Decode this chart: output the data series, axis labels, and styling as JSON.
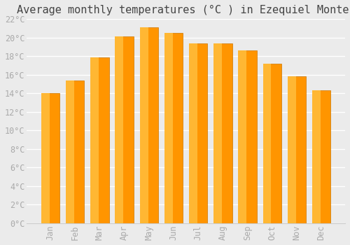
{
  "title": "Average monthly temperatures (°C ) in Ezequiel Montes",
  "months": [
    "Jan",
    "Feb",
    "Mar",
    "Apr",
    "May",
    "Jun",
    "Jul",
    "Aug",
    "Sep",
    "Oct",
    "Nov",
    "Dec"
  ],
  "values": [
    14.0,
    15.4,
    17.9,
    20.1,
    21.1,
    20.5,
    19.4,
    19.4,
    18.6,
    17.2,
    15.8,
    14.3
  ],
  "bar_color_top": "#FFB733",
  "bar_color_bottom": "#FF9500",
  "bar_edge_color": "#CC7700",
  "ylim": [
    0,
    22
  ],
  "yticks": [
    0,
    2,
    4,
    6,
    8,
    10,
    12,
    14,
    16,
    18,
    20,
    22
  ],
  "background_color": "#ebebeb",
  "grid_color": "#ffffff",
  "title_fontsize": 11,
  "tick_fontsize": 8.5,
  "tick_color": "#aaaaaa",
  "font_family": "monospace"
}
